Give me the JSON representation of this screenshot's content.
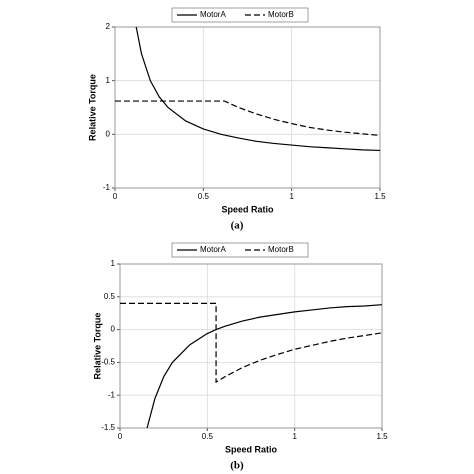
{
  "chart_data": [
    {
      "type": "line",
      "caption": "(a)",
      "x_label": "Speed Ratio",
      "y_label": "Relative Torque",
      "xlim": [
        0,
        1.5
      ],
      "ylim": [
        -1,
        2
      ],
      "xticks": [
        0,
        0.5,
        1,
        1.5
      ],
      "yticks": [
        -1,
        0,
        1,
        2
      ],
      "grid": true,
      "series": [
        {
          "name": "MotorA",
          "color": "#000000",
          "line_style": "solid",
          "x": [
            0.12,
            0.15,
            0.2,
            0.25,
            0.3,
            0.4,
            0.5,
            0.6,
            0.7,
            0.8,
            0.9,
            1.0,
            1.1,
            1.2,
            1.3,
            1.4,
            1.5
          ],
          "values": [
            2.0,
            1.5,
            1.0,
            0.7,
            0.5,
            0.25,
            0.1,
            0.0,
            -0.07,
            -0.13,
            -0.17,
            -0.2,
            -0.23,
            -0.25,
            -0.27,
            -0.29,
            -0.3
          ]
        },
        {
          "name": "MotorB",
          "color": "#000000",
          "line_style": "dashed",
          "x": [
            0,
            0.62,
            0.7,
            0.8,
            0.9,
            1.0,
            1.1,
            1.2,
            1.3,
            1.4,
            1.5
          ],
          "values": [
            0.62,
            0.62,
            0.5,
            0.38,
            0.28,
            0.2,
            0.13,
            0.08,
            0.04,
            0.01,
            -0.02
          ]
        }
      ]
    },
    {
      "type": "line",
      "caption": "(b)",
      "x_label": "Speed Ratio",
      "y_label": "Relative Torque",
      "xlim": [
        0,
        1.5
      ],
      "ylim": [
        -1.5,
        1
      ],
      "xticks": [
        0,
        0.5,
        1,
        1.5
      ],
      "yticks": [
        -1.5,
        -1,
        -0.5,
        0,
        0.5,
        1
      ],
      "grid": true,
      "series": [
        {
          "name": "MotorA",
          "color": "#000000",
          "line_style": "solid",
          "x": [
            0.155,
            0.2,
            0.25,
            0.3,
            0.4,
            0.5,
            0.55,
            0.6,
            0.7,
            0.8,
            0.9,
            1.0,
            1.1,
            1.2,
            1.3,
            1.4,
            1.5
          ],
          "values": [
            -1.5,
            -1.05,
            -0.72,
            -0.5,
            -0.23,
            -0.06,
            0,
            0.05,
            0.13,
            0.19,
            0.23,
            0.27,
            0.3,
            0.33,
            0.35,
            0.36,
            0.38
          ]
        },
        {
          "name": "MotorB",
          "color": "#000000",
          "line_style": "dashed",
          "x": [
            0,
            0.55,
            0.55,
            0.6,
            0.7,
            0.8,
            0.9,
            1.0,
            1.1,
            1.2,
            1.3,
            1.4,
            1.5
          ],
          "values": [
            0.4,
            0.4,
            -0.8,
            -0.72,
            -0.58,
            -0.47,
            -0.38,
            -0.3,
            -0.24,
            -0.18,
            -0.13,
            -0.09,
            -0.05
          ]
        }
      ]
    }
  ]
}
